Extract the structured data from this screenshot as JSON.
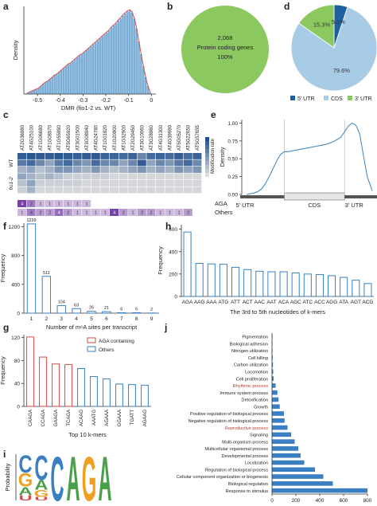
{
  "figure": {
    "panel_letters": [
      "a",
      "b",
      "c",
      "d",
      "e",
      "f",
      "g",
      "h",
      "i",
      "j"
    ]
  },
  "chart_data": [
    {
      "id": "a",
      "type": "histogram",
      "title": "",
      "xlabel": "DMR (fio1-2 vs. WT)",
      "ylabel": "Density",
      "xticks": [
        "-0.5",
        "-0.4",
        "-0.3",
        "-0.2",
        "-0.1",
        "0"
      ],
      "xlim": [
        -0.56,
        0.02
      ],
      "density_curve_color": "#d05050",
      "bar_color": "#7aaed6",
      "bin_centers": [
        -0.545,
        -0.535,
        -0.525,
        -0.515,
        -0.505,
        -0.495,
        -0.485,
        -0.475,
        -0.465,
        -0.455,
        -0.445,
        -0.435,
        -0.425,
        -0.415,
        -0.405,
        -0.395,
        -0.385,
        -0.375,
        -0.365,
        -0.355,
        -0.345,
        -0.335,
        -0.325,
        -0.315,
        -0.305,
        -0.295,
        -0.285,
        -0.275,
        -0.265,
        -0.255,
        -0.245,
        -0.235,
        -0.225,
        -0.215,
        -0.205,
        -0.195,
        -0.185,
        -0.175,
        -0.165,
        -0.155,
        -0.145,
        -0.135,
        -0.125,
        -0.115,
        -0.105,
        -0.095,
        -0.085,
        -0.075,
        -0.065,
        -0.055,
        -0.045,
        -0.035,
        -0.025,
        -0.015,
        -0.005
      ],
      "densities": [
        0.1,
        0.2,
        0.3,
        0.4,
        0.5,
        0.6,
        0.8,
        1.0,
        1.2,
        1.3,
        1.5,
        1.7,
        1.9,
        2.0,
        2.2,
        2.4,
        2.6,
        2.8,
        3.0,
        3.1,
        3.3,
        3.5,
        3.7,
        3.9,
        4.0,
        4.2,
        4.4,
        4.6,
        4.8,
        5.0,
        5.2,
        5.4,
        5.6,
        5.8,
        6.0,
        6.2,
        6.4,
        6.7,
        6.9,
        7.1,
        7.4,
        7.6,
        7.9,
        8.1,
        8.3,
        8.4,
        8.2,
        7.6,
        6.6,
        5.3,
        4.0,
        2.8,
        1.7,
        0.8,
        0.2
      ]
    },
    {
      "id": "b",
      "type": "pie",
      "slices": [
        {
          "label": "2,068",
          "sublabel": "Protein coding genes",
          "value": 100,
          "value_label": "100%",
          "color": "#8cc860"
        }
      ]
    },
    {
      "id": "c",
      "type": "heatmap",
      "columns": [
        "AT2G36880",
        "AT4G25100",
        "AT1G06680",
        "AT1G08570",
        "AT1G55890",
        "AT5G65920",
        "AT3G01500",
        "AT3G08940",
        "AT4G24780",
        "AT1G01820",
        "AT1G20800",
        "AT1G32900",
        "AT2G29450",
        "AT3G10060",
        "AT3G28860",
        "AT4G31300",
        "AT4G39990",
        "AT5G05270",
        "AT5G22650",
        "AT5G57655"
      ],
      "rows": [
        "WT",
        "fio1-2"
      ],
      "legend_label": "Modification rate",
      "color_low": "#dddddd",
      "color_high": "#1f4e8c",
      "wt_rows": [
        [
          0.9,
          0.95,
          0.92,
          0.9,
          0.95,
          0.9,
          0.88,
          0.9,
          0.92,
          0.85,
          0.85,
          0.8,
          0.85,
          0.6,
          0.8,
          0.85,
          0.8,
          0.9,
          0.8,
          0.85
        ],
        [
          0.7,
          0.8,
          0.6,
          0.4,
          0.7,
          0.8,
          0.6,
          0.5,
          0.8,
          0.6,
          0.6,
          0.4,
          0.6,
          0.9,
          0.4,
          0.6,
          0.5,
          0.7,
          0.8,
          0.6
        ],
        [
          0.3,
          0.4,
          0.2,
          0.3,
          0.5,
          0.5,
          0.4,
          0.3,
          0.5,
          0.3,
          0.2,
          0.3,
          0.4,
          0.5,
          0.3,
          0.4,
          0.3,
          0.5,
          0.4,
          0.5
        ]
      ],
      "fio_rows": [
        [
          0.4,
          0.3,
          0.2,
          0.3,
          0.2,
          0.1,
          0.1,
          0.1,
          0.1,
          0.1,
          0.05,
          0.05,
          0.05,
          0.05,
          0.05,
          0.05,
          0.05,
          0.05,
          0.05,
          0.05
        ],
        [
          0.2,
          0.4,
          0.1,
          0.1,
          0.1,
          0.1,
          0.1,
          0.05,
          0.05,
          0.05,
          0.05,
          0.05,
          0.05,
          0.05,
          0.05,
          0.05,
          0.05,
          0.05,
          0.05,
          0.05
        ],
        [
          0.1,
          0.3,
          0.05,
          0.05,
          0.05,
          0.05,
          0.05,
          0.05,
          0.05,
          0.05,
          0.05,
          0.05,
          0.05,
          0.05,
          0.05,
          0.05,
          0.05,
          0.05,
          0.05,
          0.05
        ]
      ],
      "annotation_rows": [
        {
          "label": "AGA",
          "counts": [
            "4",
            "2",
            "1",
            "1",
            "1",
            "1",
            "1",
            "1",
            "",
            "",
            "",
            "",
            "",
            "",
            "",
            "",
            "",
            "",
            "",
            ""
          ],
          "shades": [
            0.9,
            0.5,
            0.1,
            0.1,
            0.1,
            0.1,
            0.1,
            0.1,
            0,
            0,
            0,
            0,
            0,
            0,
            0,
            0,
            0,
            0,
            0,
            0
          ]
        },
        {
          "label": "Others",
          "counts": [
            "1",
            "4",
            "2",
            "2",
            "4",
            "2",
            "1",
            "1",
            "1",
            "1",
            "4",
            "2",
            "1",
            "2",
            "2",
            "1",
            "1",
            "1",
            "2",
            ""
          ],
          "shades": [
            0.1,
            0.5,
            0.3,
            0.3,
            0.6,
            0.3,
            0.1,
            0.1,
            0.1,
            0.1,
            0.9,
            0.3,
            0.1,
            0.3,
            0.3,
            0.1,
            0.1,
            0.1,
            0.3,
            0
          ]
        }
      ]
    },
    {
      "id": "d",
      "type": "pie",
      "slices": [
        {
          "label": "5' UTR",
          "value": 5.1,
          "value_label": "5.1%",
          "color": "#1e5f9e"
        },
        {
          "label": "CDS",
          "value": 79.6,
          "value_label": "79.6%",
          "color": "#a8cbe6"
        },
        {
          "label": "3' UTR",
          "value": 15.3,
          "value_label": "15.3%",
          "color": "#8cc860"
        }
      ]
    },
    {
      "id": "e",
      "type": "line",
      "ylabel": "Density",
      "yticks": [
        "0.00",
        "0.25",
        "0.50",
        "0.75",
        "1.00"
      ],
      "ylim": [
        0,
        1.05
      ],
      "xlim": [
        0,
        100
      ],
      "regions": [
        "5' UTR",
        "CDS",
        "3' UTR"
      ],
      "region_bounds": [
        30,
        78
      ],
      "line_color": "#4a8bbf",
      "x": [
        0,
        3,
        6,
        9,
        12,
        15,
        18,
        21,
        24,
        27,
        30,
        33,
        36,
        39,
        42,
        45,
        48,
        51,
        54,
        57,
        60,
        63,
        66,
        69,
        72,
        75,
        78,
        81,
        84,
        87,
        90,
        93,
        96,
        100
      ],
      "y": [
        0.0,
        0.01,
        0.02,
        0.04,
        0.08,
        0.15,
        0.25,
        0.36,
        0.47,
        0.56,
        0.6,
        0.6,
        0.61,
        0.62,
        0.63,
        0.64,
        0.65,
        0.66,
        0.67,
        0.68,
        0.69,
        0.7,
        0.72,
        0.74,
        0.77,
        0.8,
        0.88,
        0.96,
        1.0,
        0.97,
        0.85,
        0.55,
        0.25,
        0.05
      ]
    },
    {
      "id": "f",
      "type": "bar",
      "xlabel": "Number of m⁶A sites per transcript",
      "ylabel": "Frequency",
      "ylim": [
        0,
        1250
      ],
      "yticks": [
        "0",
        "400",
        "800",
        "1200"
      ],
      "bar_color": "#3a7fc1",
      "categories": [
        "1",
        "2",
        "3",
        "4",
        "5",
        "6",
        "7",
        "8",
        "9"
      ],
      "values": [
        1239,
        511,
        104,
        63,
        26,
        21,
        6,
        6,
        2
      ],
      "value_labels": [
        "1239",
        "511",
        "104",
        "63",
        "26",
        "21",
        "6",
        "6",
        "2"
      ]
    },
    {
      "id": "g",
      "type": "bar",
      "xlabel": "Top 10 k-mers",
      "ylabel": "Frequency",
      "ylim": [
        0,
        125
      ],
      "yticks": [
        "0",
        "40",
        "80",
        "120"
      ],
      "legend": [
        {
          "label": "AGA containing",
          "color": "#d64b47"
        },
        {
          "label": "Others",
          "color": "#3a7fc1"
        }
      ],
      "categories": [
        "CAAGA",
        "CCAGA",
        "GAAGA",
        "TCAGA",
        "ACAAG",
        "AAATG",
        "AGAAA",
        "GGAAA",
        "TGATT",
        "AGAAG"
      ],
      "values": [
        121,
        86,
        74,
        73,
        66,
        52,
        48,
        39,
        38,
        37
      ],
      "groups": [
        "aga",
        "aga",
        "aga",
        "aga",
        "other",
        "other",
        "other",
        "other",
        "other",
        "other"
      ]
    },
    {
      "id": "h",
      "type": "bar",
      "xlabel": "The 3rd to 5th nucleotides of k-mers",
      "ylabel": "Frequency",
      "ylim": [
        0,
        640
      ],
      "yticks": [
        "0",
        "200",
        "400",
        "600"
      ],
      "bar_color": "#3a7fc1",
      "categories": [
        "AGA",
        "AAG",
        "AAA",
        "ATG",
        "ATT",
        "ACT",
        "AAC",
        "AAT",
        "ACA",
        "AGC",
        "ATC",
        "ACC",
        "AGG",
        "ATA",
        "AGT",
        "ACG"
      ],
      "values": [
        575,
        295,
        290,
        287,
        260,
        240,
        225,
        220,
        220,
        210,
        200,
        195,
        185,
        170,
        145,
        115
      ]
    },
    {
      "id": "i",
      "type": "sequence_logo",
      "ylabel": "Probability",
      "positions": [
        {
          "letters": [
            {
              "ch": "U",
              "h": 0.12,
              "color": "#d64b47"
            },
            {
              "ch": "A",
              "h": 0.18,
              "color": "#4aa04a"
            },
            {
              "ch": "G",
              "h": 0.3,
              "color": "#f0a020"
            },
            {
              "ch": "C",
              "h": 0.4,
              "color": "#3a7fc1"
            }
          ]
        },
        {
          "letters": [
            {
              "ch": "U",
              "h": 0.08,
              "color": "#d64b47"
            },
            {
              "ch": "G",
              "h": 0.15,
              "color": "#f0a020"
            },
            {
              "ch": "A",
              "h": 0.22,
              "color": "#4aa04a"
            },
            {
              "ch": "C",
              "h": 0.55,
              "color": "#3a7fc1"
            }
          ]
        },
        {
          "letters": [
            {
              "ch": "C",
              "h": 1.0,
              "color": "#3a7fc1"
            }
          ]
        },
        {
          "letters": [
            {
              "ch": "A",
              "h": 1.0,
              "color": "#4aa04a"
            }
          ]
        },
        {
          "letters": [
            {
              "ch": "G",
              "h": 1.0,
              "color": "#f0a020"
            }
          ]
        },
        {
          "letters": [
            {
              "ch": "A",
              "h": 1.0,
              "color": "#4aa04a"
            }
          ]
        }
      ]
    },
    {
      "id": "j",
      "type": "bar",
      "orientation": "horizontal",
      "xlim": [
        0,
        800
      ],
      "xticks": [
        "0",
        "200",
        "400",
        "600",
        "800"
      ],
      "bar_color": "#3a7fc1",
      "highlight_color": "#c0392b",
      "categories": [
        "Pigmentation",
        "Biological adhesion",
        "Nitrogen utilization",
        "Cell killing",
        "Carbon utilization",
        "Locomotion",
        "Cell proliferation",
        "Rhythmic process",
        "Immune system process",
        "Detoxification",
        "Growth",
        "Positive regulation of biological process",
        "Negative regulation of biological process",
        "Reproductive process",
        "Signaling",
        "Multi-organism process",
        "Multicellular organismal process",
        "Developmental process",
        "Localization",
        "Regulation of biological process",
        "Cellular component organization or biogenesis",
        "Biological regulation",
        "Response to stimulus"
      ],
      "values": [
        2,
        3,
        4,
        6,
        8,
        10,
        14,
        30,
        45,
        55,
        65,
        100,
        105,
        130,
        160,
        190,
        220,
        240,
        270,
        360,
        430,
        510,
        800
      ],
      "highlighted": [
        "Rhythmic process",
        "Reproductive process"
      ]
    }
  ]
}
